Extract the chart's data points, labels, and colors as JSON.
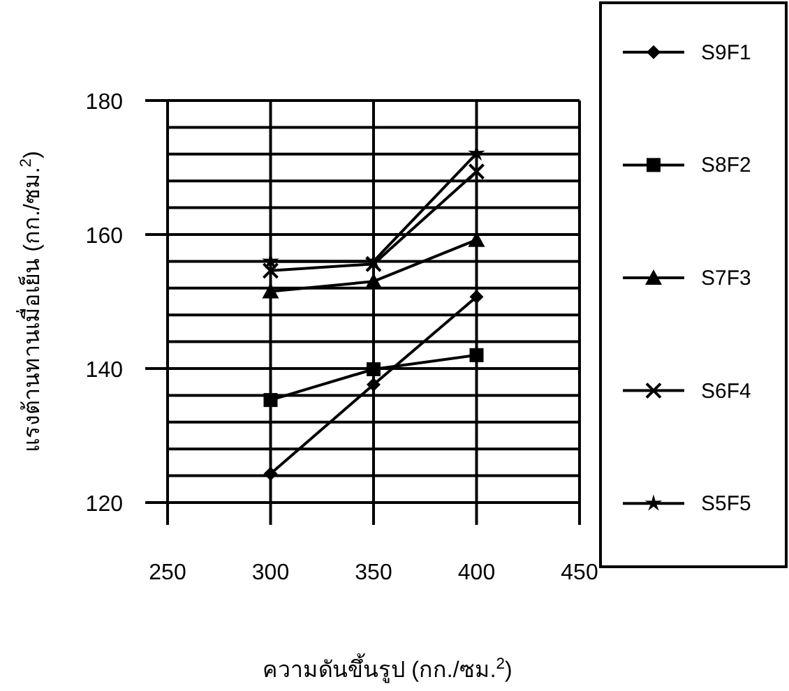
{
  "chart_data": {
    "type": "line",
    "xlabel": "ความดันขึ้นรูป (กก./ซม.$^{2}$)",
    "ylabel": "แรงต้านทานเมื่อเย็น (กก./ซม.$^{2}$)",
    "x": [
      300,
      350,
      400
    ],
    "xlim": [
      250,
      450
    ],
    "xticks": [
      250,
      300,
      350,
      400,
      450
    ],
    "ylim": [
      120,
      180
    ],
    "yticks": [
      120,
      {
        "value": 124,
        "label": null
      },
      {
        "value": 128,
        "label": null
      },
      {
        "value": 132,
        "label": null
      },
      {
        "value": 136,
        "label": null
      },
      140,
      {
        "value": 144,
        "label": null
      },
      {
        "value": 148,
        "label": null
      },
      {
        "value": 152,
        "label": null
      },
      {
        "value": 156,
        "label": null
      },
      160,
      {
        "value": 164,
        "label": null
      },
      {
        "value": 168,
        "label": null
      },
      {
        "value": 172,
        "label": null
      },
      {
        "value": 176,
        "label": null
      },
      180
    ],
    "grid": true,
    "legend": "right",
    "line_style": "solid",
    "series": [
      {
        "name": "S9F1",
        "color": "#000000",
        "marker": "diamond",
        "values": [
          124.3,
          137.6,
          150.7
        ]
      },
      {
        "name": "S8F2",
        "color": "#000000",
        "marker": "square",
        "values": [
          135.3,
          139.9,
          142
        ]
      },
      {
        "name": "S7F3",
        "color": "#000000",
        "marker": "triangle",
        "values": [
          151.5,
          153,
          159.2
        ]
      },
      {
        "name": "S6F4",
        "color": "#000000",
        "marker": "cross",
        "values": [
          154.6,
          155.6,
          169.4
        ]
      },
      {
        "name": "S5F5",
        "color": "#000000",
        "marker": "star",
        "values": [
          156,
          156,
          172.1
        ]
      }
    ]
  }
}
